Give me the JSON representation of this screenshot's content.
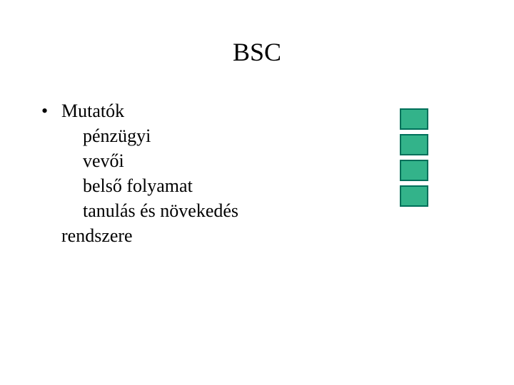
{
  "title": "BSC",
  "bullet": {
    "header": "Mutatók",
    "subitems": [
      "pénzügyi",
      "vevői",
      "belső folyamat",
      "tanulás és növekedés"
    ],
    "closer": "rendszere"
  },
  "boxes": {
    "count": 4,
    "fill": "#33b38a",
    "border": "#00705a",
    "border_width": 2,
    "width": 40,
    "height": 30,
    "gap": 6
  },
  "colors": {
    "background": "#ffffff",
    "text": "#000000"
  },
  "fonts": {
    "title_size": 36,
    "body_size": 26,
    "family": "Times New Roman"
  }
}
